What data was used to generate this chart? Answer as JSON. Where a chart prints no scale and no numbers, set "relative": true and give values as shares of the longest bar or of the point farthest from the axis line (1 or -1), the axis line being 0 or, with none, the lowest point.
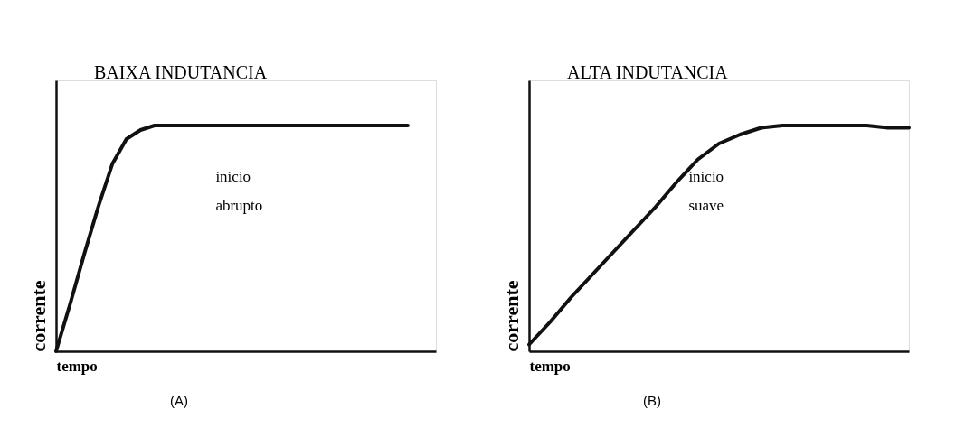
{
  "chart_data": [
    {
      "type": "line",
      "title": "BAIXA INDUTANCIA",
      "xlabel": "tempo",
      "ylabel": "corrente",
      "relative": true,
      "tick_labels": false,
      "grid": false,
      "legend": false,
      "marker": "none",
      "line_style": "solid",
      "categories": [
        null,
        null,
        null,
        null,
        null,
        null,
        null,
        null,
        null,
        null,
        null,
        null,
        null,
        null,
        null,
        null,
        null,
        null,
        null,
        null,
        null,
        null,
        null,
        null,
        null,
        null,
        null,
        null
      ],
      "series": [
        {
          "color": "#111111",
          "values": [
            0,
            0.21,
            0.43,
            0.64,
            0.83,
            0.94,
            0.98,
            1,
            1,
            1,
            1,
            1,
            1,
            1,
            1,
            1,
            1,
            1,
            1,
            1,
            1,
            1,
            1,
            1,
            1,
            1,
            null,
            null
          ]
        }
      ],
      "annotations": [
        "inicio\nabrupto",
        "(A)"
      ]
    },
    {
      "type": "line",
      "title": "ALTA INDUTANCIA",
      "xlabel": "tempo",
      "ylabel": "corrente",
      "relative": true,
      "tick_labels": false,
      "grid": false,
      "legend": false,
      "marker": "none",
      "line_style": "solid",
      "categories": [
        null,
        null,
        null,
        null,
        null,
        null,
        null,
        null,
        null,
        null,
        null,
        null,
        null,
        null,
        null,
        null,
        null,
        null,
        null
      ],
      "series": [
        {
          "color": "#111111",
          "values": [
            0.03,
            0.13,
            0.24,
            0.34,
            0.44,
            0.54,
            0.64,
            0.75,
            0.85,
            0.92,
            0.96,
            0.99,
            1,
            1,
            1,
            1,
            1,
            0.99,
            0.99
          ]
        }
      ],
      "annotations": [
        "inicio\nsuave",
        "(B)"
      ]
    }
  ]
}
